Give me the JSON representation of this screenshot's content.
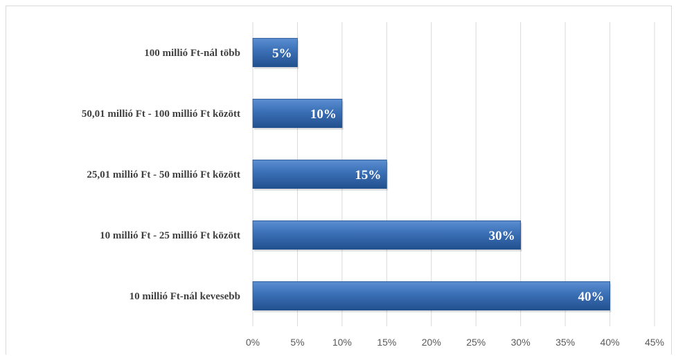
{
  "chart_data": {
    "type": "bar",
    "orientation": "horizontal",
    "categories": [
      "100 millió Ft-nál több",
      "50,01 millió Ft - 100 millió Ft között",
      "25,01  millió Ft - 50 millió Ft között",
      "10 millió Ft - 25 millió Ft között",
      "10 millió Ft-nál kevesebb"
    ],
    "values": [
      5,
      10,
      15,
      30,
      40
    ],
    "data_labels": [
      "5%",
      "10%",
      "15%",
      "30%",
      "40%"
    ],
    "xlim": [
      0,
      45
    ],
    "xticks": [
      0,
      5,
      10,
      15,
      20,
      25,
      30,
      35,
      40,
      45
    ],
    "xtick_labels": [
      "0%",
      "5%",
      "10%",
      "15%",
      "20%",
      "25%",
      "30%",
      "35%",
      "40%",
      "45%"
    ],
    "grid": true,
    "legend": "none",
    "colors": {
      "bar": "#3a6fb5",
      "bar_light": "#5b8fd2",
      "bar_dark": "#22508e",
      "grid": "#d9d9d9"
    }
  }
}
